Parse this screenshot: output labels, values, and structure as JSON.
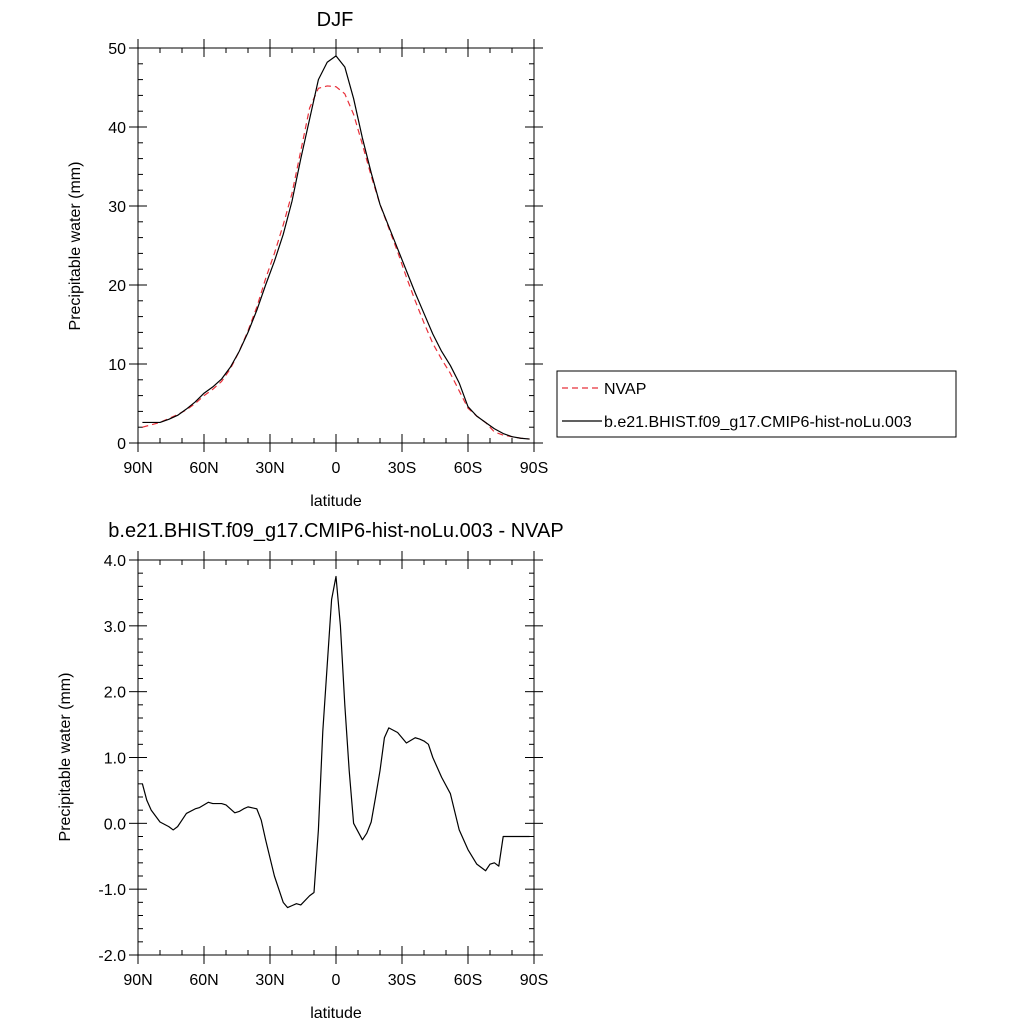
{
  "chart_data": [
    {
      "type": "line",
      "title": "DJF",
      "xlabel": "latitude",
      "ylabel": "Precipitable water (mm)",
      "xlim": [
        -90,
        90
      ],
      "ylim": [
        0,
        50
      ],
      "x_ticks": [
        -90,
        -60,
        -30,
        0,
        30,
        60,
        90
      ],
      "x_tick_labels": [
        "90N",
        "60N",
        "30N",
        "0",
        "30S",
        "60S",
        "90S"
      ],
      "y_ticks": [
        0,
        10,
        20,
        30,
        40,
        50
      ],
      "y_tick_labels": [
        "0",
        "10",
        "20",
        "30",
        "40",
        "50"
      ],
      "legend_position": "right",
      "series": [
        {
          "name": "NVAP",
          "color": "#e8303a",
          "dash": "dashed",
          "x": [
            -88,
            -84,
            -80,
            -76,
            -72,
            -68,
            -64,
            -60,
            -56,
            -52,
            -48,
            -44,
            -40,
            -36,
            -32,
            -28,
            -24,
            -20,
            -16,
            -12,
            -8,
            -4,
            0,
            4,
            8,
            12,
            16,
            20,
            24,
            28,
            32,
            36,
            40,
            44,
            48,
            52,
            56,
            60,
            64,
            68,
            72,
            76,
            80,
            84,
            88
          ],
          "y": [
            2.0,
            2.3,
            2.6,
            3.1,
            3.6,
            4.2,
            5.0,
            6.0,
            6.8,
            7.8,
            9.4,
            11.6,
            14.2,
            17.2,
            20.8,
            24.0,
            27.6,
            31.6,
            37.0,
            42.4,
            44.9,
            45.2,
            45.1,
            44.2,
            41.6,
            37.8,
            33.8,
            30.2,
            27.2,
            24.2,
            21.0,
            18.0,
            15.2,
            12.6,
            10.6,
            8.8,
            6.6,
            4.4,
            3.4,
            2.6,
            1.4,
            1.0,
            0.8,
            0.6,
            0.5
          ]
        },
        {
          "name": "b.e21.BHIST.f09_g17.CMIP6-hist-noLu.003",
          "color": "#000000",
          "dash": "solid",
          "x": [
            -88,
            -84,
            -80,
            -76,
            -72,
            -68,
            -64,
            -60,
            -56,
            -52,
            -48,
            -44,
            -40,
            -36,
            -32,
            -28,
            -24,
            -20,
            -16,
            -12,
            -8,
            -4,
            0,
            4,
            8,
            12,
            16,
            20,
            24,
            28,
            32,
            36,
            40,
            44,
            48,
            52,
            56,
            60,
            64,
            68,
            72,
            76,
            80,
            84,
            88
          ],
          "y": [
            2.6,
            2.6,
            2.6,
            3.0,
            3.5,
            4.3,
            5.2,
            6.3,
            7.1,
            8.1,
            9.6,
            11.6,
            14.0,
            16.8,
            20.0,
            23.0,
            26.4,
            30.6,
            36.0,
            41.0,
            46.0,
            48.2,
            49.0,
            47.6,
            43.6,
            38.6,
            34.2,
            30.2,
            27.4,
            24.6,
            21.8,
            19.0,
            16.4,
            13.8,
            11.6,
            9.8,
            7.6,
            4.6,
            3.4,
            2.6,
            1.8,
            1.2,
            0.8,
            0.6,
            0.5
          ]
        }
      ]
    },
    {
      "type": "line",
      "title": "b.e21.BHIST.f09_g17.CMIP6-hist-noLu.003 - NVAP",
      "xlabel": "latitude",
      "ylabel": "Precipitable water (mm)",
      "xlim": [
        -90,
        90
      ],
      "ylim": [
        -2.0,
        4.0
      ],
      "x_ticks": [
        -90,
        -60,
        -30,
        0,
        30,
        60,
        90
      ],
      "x_tick_labels": [
        "90N",
        "60N",
        "30N",
        "0",
        "30S",
        "60S",
        "90S"
      ],
      "y_ticks": [
        -2.0,
        -1.0,
        0.0,
        1.0,
        2.0,
        3.0,
        4.0
      ],
      "y_tick_labels": [
        "-2.0",
        "-1.0",
        "0.0",
        "1.0",
        "2.0",
        "3.0",
        "4.0"
      ],
      "series": [
        {
          "color": "#000000",
          "dash": "solid",
          "x": [
            -88,
            -86,
            -84,
            -80,
            -76,
            -74,
            -72,
            -70,
            -68,
            -64,
            -62,
            -58,
            -56,
            -52,
            -50,
            -46,
            -44,
            -42,
            -40,
            -36,
            -34,
            -32,
            -28,
            -24,
            -22,
            -20,
            -18,
            -16,
            -12,
            -10,
            -8,
            -6,
            -4,
            -2,
            0,
            2,
            4,
            6,
            8,
            12,
            14,
            16,
            18,
            20,
            22,
            24,
            28,
            32,
            34,
            36,
            38,
            40,
            42,
            44,
            46,
            48,
            52,
            56,
            60,
            64,
            68,
            70,
            72,
            74,
            76,
            78,
            80,
            82,
            84,
            86,
            88
          ],
          "y": [
            0.6,
            0.35,
            0.2,
            0.02,
            -0.05,
            -0.1,
            -0.05,
            0.05,
            0.15,
            0.22,
            0.24,
            0.32,
            0.3,
            0.3,
            0.28,
            0.16,
            0.18,
            0.22,
            0.25,
            0.22,
            0.05,
            -0.25,
            -0.8,
            -1.2,
            -1.28,
            -1.25,
            -1.22,
            -1.24,
            -1.1,
            -1.05,
            -0.1,
            1.4,
            2.4,
            3.4,
            3.75,
            3.0,
            1.8,
            0.8,
            0.0,
            -0.25,
            -0.15,
            0.02,
            0.4,
            0.8,
            1.3,
            1.45,
            1.38,
            1.22,
            1.26,
            1.3,
            1.28,
            1.25,
            1.2,
            1.0,
            0.85,
            0.7,
            0.45,
            -0.1,
            -0.4,
            -0.62,
            -0.72,
            -0.62,
            -0.6,
            -0.65,
            -0.2,
            -0.2,
            -0.2,
            -0.2,
            -0.2,
            -0.2,
            -0.2
          ]
        }
      ]
    }
  ]
}
